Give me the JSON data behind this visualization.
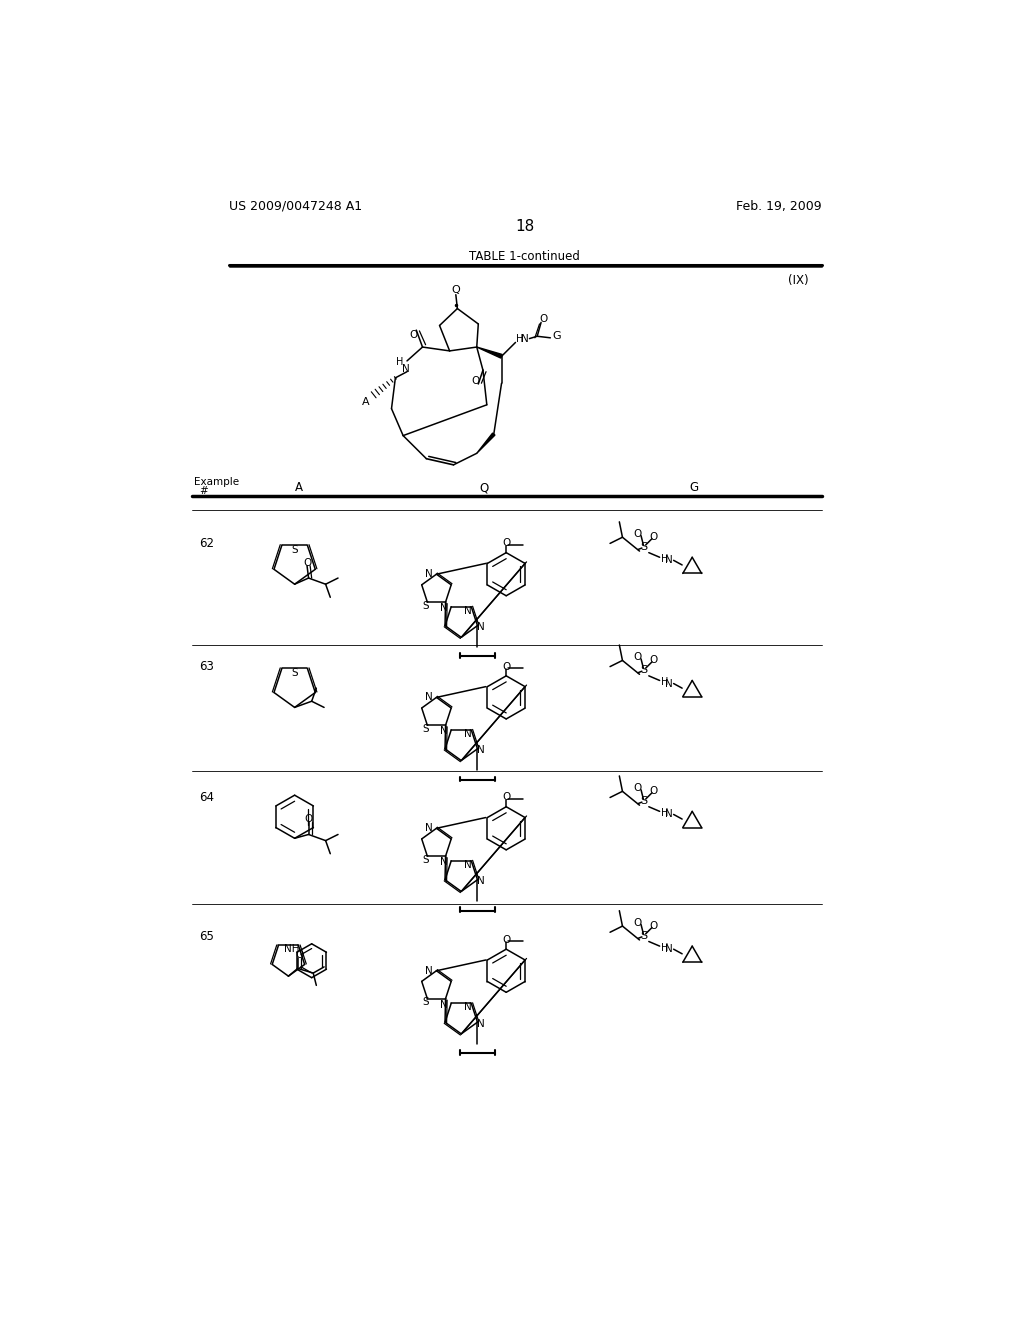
{
  "patent_number": "US 2009/0047248 A1",
  "patent_date": "Feb. 19, 2009",
  "page_number": "18",
  "table_title": "TABLE 1-continued",
  "formula_label": "(IX)",
  "background_color": "#ffffff",
  "text_color": "#000000"
}
